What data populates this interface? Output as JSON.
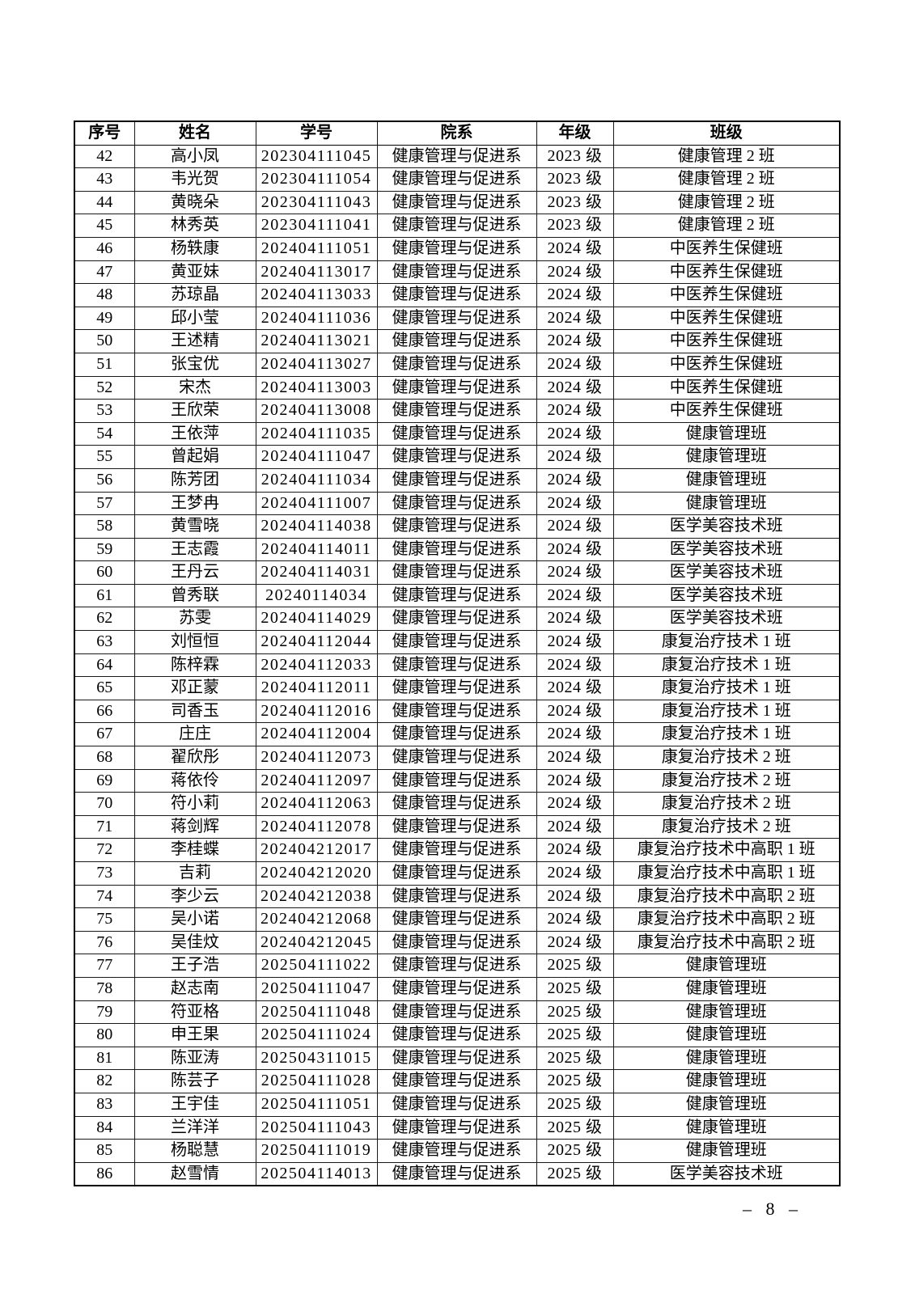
{
  "page": {
    "number_label": "– 8 –"
  },
  "table": {
    "headers": [
      "序号",
      "姓名",
      "学号",
      "院系",
      "年级",
      "班级"
    ],
    "rows": [
      [
        "42",
        "高小凤",
        "202304111045",
        "健康管理与促进系",
        "2023 级",
        "健康管理 2 班"
      ],
      [
        "43",
        "韦光贺",
        "202304111054",
        "健康管理与促进系",
        "2023 级",
        "健康管理 2 班"
      ],
      [
        "44",
        "黄晓朵",
        "202304111043",
        "健康管理与促进系",
        "2023 级",
        "健康管理 2 班"
      ],
      [
        "45",
        "林秀英",
        "202304111041",
        "健康管理与促进系",
        "2023 级",
        "健康管理 2 班"
      ],
      [
        "46",
        "杨轶康",
        "202404111051",
        "健康管理与促进系",
        "2024 级",
        "中医养生保健班"
      ],
      [
        "47",
        "黄亚妹",
        "202404113017",
        "健康管理与促进系",
        "2024 级",
        "中医养生保健班"
      ],
      [
        "48",
        "苏琼晶",
        "202404113033",
        "健康管理与促进系",
        "2024 级",
        "中医养生保健班"
      ],
      [
        "49",
        "邱小莹",
        "202404111036",
        "健康管理与促进系",
        "2024 级",
        "中医养生保健班"
      ],
      [
        "50",
        "王述精",
        "202404113021",
        "健康管理与促进系",
        "2024 级",
        "中医养生保健班"
      ],
      [
        "51",
        "张宝优",
        "202404113027",
        "健康管理与促进系",
        "2024 级",
        "中医养生保健班"
      ],
      [
        "52",
        "宋杰",
        "202404113003",
        "健康管理与促进系",
        "2024 级",
        "中医养生保健班"
      ],
      [
        "53",
        "王欣荣",
        "202404113008",
        "健康管理与促进系",
        "2024 级",
        "中医养生保健班"
      ],
      [
        "54",
        "王依萍",
        "202404111035",
        "健康管理与促进系",
        "2024 级",
        "健康管理班"
      ],
      [
        "55",
        "曾起娟",
        "202404111047",
        "健康管理与促进系",
        "2024 级",
        "健康管理班"
      ],
      [
        "56",
        "陈芳团",
        "202404111034",
        "健康管理与促进系",
        "2024 级",
        "健康管理班"
      ],
      [
        "57",
        "王梦冉",
        "202404111007",
        "健康管理与促进系",
        "2024 级",
        "健康管理班"
      ],
      [
        "58",
        "黄雪晓",
        "202404114038",
        "健康管理与促进系",
        "2024 级",
        "医学美容技术班"
      ],
      [
        "59",
        "王志霞",
        "202404114011",
        "健康管理与促进系",
        "2024 级",
        "医学美容技术班"
      ],
      [
        "60",
        "王丹云",
        "202404114031",
        "健康管理与促进系",
        "2024 级",
        "医学美容技术班"
      ],
      [
        "61",
        "曾秀联",
        "20240114034",
        "健康管理与促进系",
        "2024 级",
        "医学美容技术班"
      ],
      [
        "62",
        "苏雯",
        "202404114029",
        "健康管理与促进系",
        "2024 级",
        "医学美容技术班"
      ],
      [
        "63",
        "刘恒恒",
        "202404112044",
        "健康管理与促进系",
        "2024 级",
        "康复治疗技术 1 班"
      ],
      [
        "64",
        "陈梓霖",
        "202404112033",
        "健康管理与促进系",
        "2024 级",
        "康复治疗技术 1 班"
      ],
      [
        "65",
        "邓正蒙",
        "202404112011",
        "健康管理与促进系",
        "2024 级",
        "康复治疗技术 1 班"
      ],
      [
        "66",
        "司香玉",
        "202404112016",
        "健康管理与促进系",
        "2024 级",
        "康复治疗技术 1 班"
      ],
      [
        "67",
        "庄庄",
        "202404112004",
        "健康管理与促进系",
        "2024 级",
        "康复治疗技术 1 班"
      ],
      [
        "68",
        "翟欣彤",
        "202404112073",
        "健康管理与促进系",
        "2024 级",
        "康复治疗技术 2 班"
      ],
      [
        "69",
        "蒋依伶",
        "202404112097",
        "健康管理与促进系",
        "2024 级",
        "康复治疗技术 2 班"
      ],
      [
        "70",
        "符小莉",
        "202404112063",
        "健康管理与促进系",
        "2024 级",
        "康复治疗技术 2 班"
      ],
      [
        "71",
        "蒋剑辉",
        "202404112078",
        "健康管理与促进系",
        "2024 级",
        "康复治疗技术 2 班"
      ],
      [
        "72",
        "李桂蝶",
        "202404212017",
        "健康管理与促进系",
        "2024 级",
        "康复治疗技术中高职 1 班"
      ],
      [
        "73",
        "吉莉",
        "202404212020",
        "健康管理与促进系",
        "2024 级",
        "康复治疗技术中高职 1 班"
      ],
      [
        "74",
        "李少云",
        "202404212038",
        "健康管理与促进系",
        "2024 级",
        "康复治疗技术中高职 2 班"
      ],
      [
        "75",
        "吴小诺",
        "202404212068",
        "健康管理与促进系",
        "2024 级",
        "康复治疗技术中高职 2 班"
      ],
      [
        "76",
        "吴佳炆",
        "202404212045",
        "健康管理与促进系",
        "2024 级",
        "康复治疗技术中高职 2 班"
      ],
      [
        "77",
        "王子浩",
        "202504111022",
        "健康管理与促进系",
        "2025 级",
        "健康管理班"
      ],
      [
        "78",
        "赵志南",
        "202504111047",
        "健康管理与促进系",
        "2025 级",
        "健康管理班"
      ],
      [
        "79",
        "符亚格",
        "202504111048",
        "健康管理与促进系",
        "2025 级",
        "健康管理班"
      ],
      [
        "80",
        "申王果",
        "202504111024",
        "健康管理与促进系",
        "2025 级",
        "健康管理班"
      ],
      [
        "81",
        "陈亚涛",
        "202504311015",
        "健康管理与促进系",
        "2025 级",
        "健康管理班"
      ],
      [
        "82",
        "陈芸子",
        "202504111028",
        "健康管理与促进系",
        "2025 级",
        "健康管理班"
      ],
      [
        "83",
        "王宇佳",
        "202504111051",
        "健康管理与促进系",
        "2025 级",
        "健康管理班"
      ],
      [
        "84",
        "兰洋洋",
        "202504111043",
        "健康管理与促进系",
        "2025 级",
        "健康管理班"
      ],
      [
        "85",
        "杨聪慧",
        "202504111019",
        "健康管理与促进系",
        "2025 级",
        "健康管理班"
      ],
      [
        "86",
        "赵雪情",
        "202504114013",
        "健康管理与促进系",
        "2025 级",
        "医学美容技术班"
      ]
    ]
  }
}
